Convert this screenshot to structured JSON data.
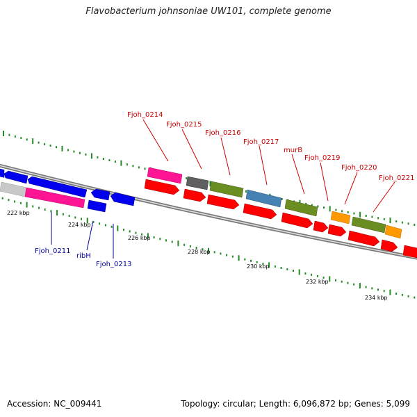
{
  "title": "Flavobacterium johnsoniae UW101, complete genome",
  "accession": "Accession: NC_009441",
  "stats": "Topology: circular; Length: 6,096,872 bp; Genes: 5,099",
  "colors": {
    "backbone": "#808080",
    "tick": "#228b22",
    "cds_red": "#ff0000",
    "blue": "#0000ee",
    "pink": "#ff1493",
    "gray": "#606060",
    "light_gray": "#c8c8c8",
    "olive": "#6b8e23",
    "steel": "#4682b4",
    "orange": "#ff9900"
  },
  "scale_labels": [
    "222 kbp",
    "224 kbp",
    "226 kbp",
    "228 kbp",
    "230 kbp",
    "232 kbp",
    "234 kbp"
  ],
  "genes_top": [
    "Fjoh_0214",
    "Fjoh_0215",
    "Fjoh_0216",
    "Fjoh_0217",
    "murB",
    "Fjoh_0219",
    "Fjoh_0220",
    "Fjoh_0221"
  ],
  "genes_bottom": [
    "Fjoh_0211",
    "ribH",
    "Fjoh_0213"
  ]
}
